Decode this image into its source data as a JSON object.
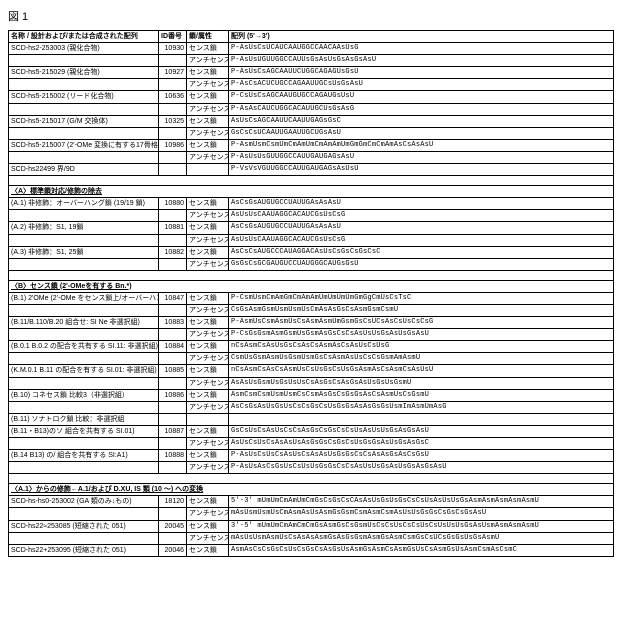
{
  "figure_label": "図 1",
  "colors": {
    "text": "#000000",
    "bg": "#ffffff",
    "border": "#000000"
  },
  "columns": {
    "name": "名称 /\n設計および/または合成された配列",
    "id": "ID番号",
    "type": "鎖/属性",
    "seq": "配列 (5'→3')"
  },
  "blocks": [
    {
      "rows": [
        {
          "name": "SCD-hs2-253003 (親化合物)",
          "id": "10930",
          "type": "センス鎖",
          "seq": "P-AsUsCsUCAUCAAUGGCCAACAAsUsG"
        },
        {
          "name": "",
          "id": "",
          "type": "アンチセンス鎖",
          "seq": "P-AsUsUGUUGGCCAUUsGsAsUsGsAsGsAsU"
        },
        {
          "name": "SCD-hs5-215029 (親化合物)",
          "id": "10927",
          "type": "センス鎖",
          "seq": "P-AsUsCsAGCAAUUCUGGCAGAGUsGsU"
        },
        {
          "name": "",
          "id": "",
          "type": "アンチセンス鎖",
          "seq": "P-AsCsACUCUGCCAGAAUUGCsUsGsAsU"
        },
        {
          "name": "SCD-hs5-215002 (リード化合物)",
          "id": "10636",
          "type": "センス鎖",
          "seq": "P-CsUsCsAGCAAUGUGCCAGAUGsUsU"
        },
        {
          "name": "",
          "id": "",
          "type": "アンチセンス鎖",
          "seq": "P-AsAsCAUCUGGCACAUUGCUsGsAsG"
        },
        {
          "name": "SCD-hs5-215017 (G/M 交換体)",
          "id": "10325",
          "type": "センス鎖",
          "seq": "AsUsCsAGCAAUUCAAUUGAGsGsC"
        },
        {
          "name": "",
          "id": "",
          "type": "アンチセンス鎖",
          "seq": "GsCsCsUCAAUUGAAUUGCUGsAsU"
        },
        {
          "name": "SCD-hs5-215007 (2'-OMe 変換に有する17骨格体)",
          "id": "10986",
          "type": "センス鎖",
          "seq": "P-AsmUsmCsmUmCmAmUmCmAmAmUmGmGmCmCmAmAsCsAsAsU"
        },
        {
          "name": "",
          "id": "",
          "type": "アンチセンス鎖",
          "seq": "P-AsUsUsGUUGGCCAUUGAUGAGsAsU"
        },
        {
          "name": "SCD-hs22499 界/9D",
          "id": "",
          "type": "",
          "seq": "P-VsVsVGUUGGCCAUUGAUGAGsAsUsU"
        }
      ]
    },
    {
      "title": "〈A〉標準鎖対応/修飾の除去",
      "rows": [
        {
          "name": "(A.1) 非修飾：オーバーハング鎖 (19/19 鎖)",
          "id": "10880",
          "type": "センス鎖",
          "seq": "AsCsGsAUGUGCCUAUUGAsAsAsU"
        },
        {
          "name": "",
          "id": "",
          "type": "アンチセンス鎖",
          "seq": "AsUsUsCAAUAGGCACAUCGsUsCsG"
        },
        {
          "name": "(A.2) 非修飾：S1, 19鎖",
          "id": "10881",
          "type": "センス鎖",
          "seq": "AsCsGsAUGUGCCUAUUGAsAsAsU"
        },
        {
          "name": "",
          "id": "",
          "type": "アンチセンス鎖",
          "seq": "AsUsUsCAAUAGGCACAUCGsUsCsG"
        },
        {
          "name": "(A.3) 非修飾：S1, 25鎖",
          "id": "10882",
          "type": "センス鎖",
          "seq": "AsCsCsAUGCCCAUAGGACAsUsCsGsCsGsCsC"
        },
        {
          "name": "",
          "id": "",
          "type": "アンチセンス鎖",
          "seq": "GsGsCsGCGAUGUCCUAUGGGCAUGsGsU"
        }
      ]
    },
    {
      "title": "〈B〉センス鎖 (2'-OMeを有する Bn.*)",
      "rows": [
        {
          "name": "(B.1) 2'OMe (2'-OMe をセンス鎖上/オーバーハング部)",
          "id": "10847",
          "type": "センス鎖",
          "seq": "P-CsmUsmCmAmGmCmAmAmUmUmUmUmGmGgCmUsCsTsC"
        },
        {
          "name": "",
          "id": "",
          "type": "アンチセンス鎖",
          "seq": "CsGsAsmGsmUsmUsmUsCmAsAsGsCsAsmGsmCsmU"
        },
        {
          "name": "(B.11/B.110/B.20 組合せ: SI Ne 非選択組)",
          "id": "10883",
          "type": "センス鎖",
          "seq": "P-AsmUsCsmAsmUsCsAsmAsmUmGsmGsCsUCsAsCsUsCsCsG"
        },
        {
          "name": "",
          "id": "",
          "type": "アンチセンス鎖",
          "seq": "P-CsGsGsmAsmGsmUsGsmAsGsCsCsAsUsUsGsAsUsGsAsU"
        },
        {
          "name": "(B.0.1 B.0.2 の配合を共有する SI.11: 非選択組)",
          "id": "10884",
          "type": "センス鎖",
          "seq": "nCsAsmCsAsUsGsCsAsCsAsmAsCsAsUsCsUsG"
        },
        {
          "name": "",
          "id": "",
          "type": "アンチセンス鎖",
          "seq": "CsmUsGsmAsmUsGsmUsmGsCsAsmAsUsCsCsGsmAmAsmU"
        },
        {
          "name": "(K.M.0.1 B.11 の配合を有する SI.01: 非選択組)",
          "id": "10885",
          "type": "センス鎖",
          "seq": "nCsAsmCsAsCsAsmUsCsUsGsCsUsGsAsmAsCsAsmCsAsUsU"
        },
        {
          "name": "",
          "id": "",
          "type": "アンチセンス鎖",
          "seq": "AsAsUsGsmUsGsUsUsCsAsGsCsAsGsAsUsGsUsGsmU"
        },
        {
          "name": "(B.10) コネセス鎖 比較3（非選択組）",
          "id": "10886",
          "type": "センス鎖",
          "seq": "AsmCsmCsmUsmUsmCsCsmAsGsCsGsGsAsCsAsmUsCsGsmU"
        },
        {
          "name": "",
          "id": "",
          "type": "アンチセンス鎖",
          "seq": "AsCsGsAsUsGsUsCsCsGsCsUsGsGsAsAsGsGsUsmImAsmUmAsG"
        },
        {
          "name": "(B.11) ソナトロク鎖 比較：非選択組",
          "id": "",
          "type": "",
          "seq": ""
        },
        {
          "name": "(B.11・B13)のソ 組合を共有する SI.01)",
          "id": "10887",
          "type": "センス鎖",
          "seq": "GsCsUsCsAsUsCsCsAsGsCsGsCsCsUsAsUsUsGsAsGsAsU"
        },
        {
          "name": "",
          "id": "",
          "type": "アンチセンス鎖",
          "seq": "AsUsCsUsCsAsAsUsAsGsGsCsGsCsUsGsGsAsUsGsAsGsC"
        },
        {
          "name": "(B.14 B13) の/ 組合を共有する SI:A1)",
          "id": "10888",
          "type": "センス鎖",
          "seq": "P-AsUsCsUsCsAsUsCsAsAsUsGsGsCsCsAsAsGsAsCsGsU"
        },
        {
          "name": "",
          "id": "",
          "type": "アンチセンス鎖",
          "seq": "P-AsUsAsCsGsUsCsUsUsGsGsCsCsAsUsUsGsAsUsGsAsGsAsU"
        }
      ]
    },
    {
      "title": "〈A.1〉からの修飾←A.1/および D.XU, IS 類 (10 〜) への変換",
      "rows": [
        {
          "name": "SCD-hs-hs0-253002 (GA 類のみ↓もの)",
          "id": "18120",
          "type": "センス鎖",
          "seq": "5'-3' mUmUmCmAmUmCmGsCsGsCsCAsAsUsGsUsGsCsCsUsAsUsUsGsAsmAsmAsmAsmAsmU"
        },
        {
          "name": "",
          "id": "",
          "type": "アンチセンス鎖",
          "seq": "mAsUsmUsmUsCmAsmAsUsAsmGsGsmCsmAsmCsmAsUsUsGsGsCsGsCsGsAsU"
        },
        {
          "name": "SCD-hs22≈253085 (短縮された 051)",
          "id": "20045",
          "type": "センス鎖",
          "seq": "3'-5' mUmUmCmAmCmCmGsAsmGsCsGsmUsCsCsUsCsCsUsCsUsUsUsGsAsUsmAsmAsmAsmU"
        },
        {
          "name": "",
          "id": "",
          "type": "アンチセンス鎖",
          "seq": "mAsUsUsmAsmUsCsAsAsAsmGsAsGsGsmAsmGsAsmCsmGsCsUCsGsGsUsGsAsmU"
        },
        {
          "name": "SCD-hs22+253095 (短縮された 051)",
          "id": "20046",
          "type": "センス鎖",
          "seq": "AsmAsCsCsGsCsUsCsGsCsAsGsUsAsmGsAsmCsAsmGsUsCsAsmGsUsAsmCsmAsCsmC"
        }
      ]
    }
  ]
}
